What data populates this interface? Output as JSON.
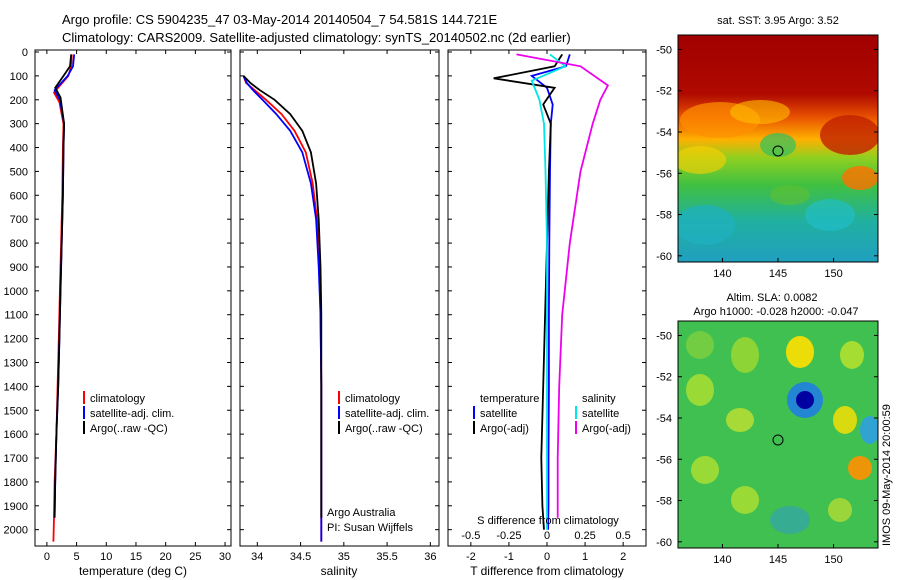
{
  "titles": {
    "line1": "Argo profile: CS 5904235_47 03-May-2014 20140504_7 54.581S 144.721E",
    "line2": "Climatology: CARS2009. Satellite-adjusted climatology: synTS_20140502.nc (2d earlier)"
  },
  "colors": {
    "climatology": "#ff0000",
    "satellite": "#0000ff",
    "argo": "#000000",
    "s_satellite": "#00e5e5",
    "s_argo": "#ee00ee"
  },
  "depth_ticks": [
    "0",
    "100",
    "200",
    "300",
    "400",
    "500",
    "600",
    "700",
    "800",
    "900",
    "1000",
    "1100",
    "1200",
    "1300",
    "1400",
    "1500",
    "1600",
    "1700",
    "1800",
    "1900",
    "2000"
  ],
  "panels": {
    "temperature": {
      "xlabel": "temperature (deg C)",
      "xticks": [
        "0",
        "5",
        "10",
        "15",
        "20",
        "25",
        "30"
      ],
      "xlim": [
        -2,
        31
      ],
      "legend": [
        "climatology",
        "satellite-adj. clim.",
        "Argo(..raw -QC)"
      ]
    },
    "salinity": {
      "xlabel": "salinity",
      "xticks": [
        "34",
        "34.5",
        "35",
        "35.5",
        "36"
      ],
      "xlim": [
        33.8,
        36.1
      ],
      "legend": [
        "climatology",
        "satellite-adj. clim.",
        "Argo(..raw -QC)"
      ],
      "note1": "Argo Australia",
      "note2": "PI: Susan Wijffels"
    },
    "difference": {
      "xlabel": "T difference from climatology",
      "top_label": "S difference from climatology",
      "t_ticks": [
        "-2",
        "-1",
        "0",
        "1",
        "2"
      ],
      "t_xlim": [
        -2.6,
        2.6
      ],
      "s_ticks": [
        "-0.5",
        "-0.25",
        "0",
        "0.25",
        "0.5"
      ],
      "legend_temperature": [
        "temperature",
        "satellite",
        "Argo(-adj)"
      ],
      "legend_salinity": [
        "salinity",
        "satellite",
        "Argo(-adj)"
      ]
    },
    "sst_map": {
      "title": "sat. SST: 3.95 Argo: 3.52",
      "yticks": [
        "-50",
        "-52",
        "-54",
        "-56",
        "-58",
        "-60"
      ],
      "xticks": [
        "140",
        "145",
        "150"
      ]
    },
    "sla_map": {
      "title1": "Altim. SLA: 0.0082",
      "title2": "Argo h1000: -0.028 h2000: -0.047",
      "yticks": [
        "-50",
        "-52",
        "-54",
        "-56",
        "-58",
        "-60"
      ],
      "xticks": [
        "140",
        "145",
        "150"
      ]
    }
  },
  "side_text": "IMOS 09-May-2014 20:00:59",
  "chart_data": [
    {
      "type": "line",
      "name_hint": "temperature profile",
      "xlabel": "temperature (deg C)",
      "ylabel": "",
      "xlim": [
        -2,
        31
      ],
      "ylim": [
        2060,
        0
      ],
      "series": [
        {
          "name": "climatology",
          "color": "#ff0000",
          "x": [
            4.2,
            4.1,
            3.6,
            1.2,
            2.1,
            2.8,
            2.7,
            2.6,
            2.4,
            2.2,
            2.0,
            1.8,
            1.6,
            1.3,
            1.2,
            1.1
          ],
          "y": [
            10,
            60,
            100,
            170,
            210,
            300,
            400,
            600,
            800,
            1000,
            1200,
            1400,
            1600,
            1800,
            1950,
            2050
          ]
        },
        {
          "name": "satellite-adj. clim.",
          "color": "#0000ff",
          "x": [
            4.6,
            4.4,
            3.5,
            1.3,
            2.2,
            2.9,
            2.8,
            2.7,
            2.5,
            2.3,
            2.1,
            1.9,
            1.6,
            1.4,
            1.3
          ],
          "y": [
            10,
            60,
            100,
            160,
            200,
            300,
            400,
            600,
            800,
            1000,
            1200,
            1400,
            1600,
            1800,
            1950
          ]
        },
        {
          "name": "Argo(..raw -QC)",
          "color": "#000000",
          "x": [
            4.1,
            3.9,
            2.8,
            1.4,
            2.3,
            2.9,
            2.8,
            2.7,
            2.5,
            2.3,
            2.1,
            1.9,
            1.6,
            1.4,
            1.3
          ],
          "y": [
            10,
            60,
            100,
            150,
            190,
            300,
            400,
            600,
            800,
            1000,
            1200,
            1400,
            1600,
            1800,
            1950
          ]
        }
      ]
    },
    {
      "type": "line",
      "name_hint": "salinity profile",
      "xlabel": "salinity",
      "ylabel": "",
      "xlim": [
        33.8,
        36.1
      ],
      "ylim": [
        2060,
        0
      ],
      "series": [
        {
          "name": "climatology",
          "color": "#ff0000",
          "x": [
            33.84,
            33.87,
            33.97,
            34.1,
            34.28,
            34.43,
            34.56,
            34.64,
            34.69,
            34.72,
            34.73,
            34.74,
            34.74,
            34.74,
            34.74
          ],
          "y": [
            100,
            130,
            160,
            200,
            260,
            330,
            420,
            550,
            700,
            900,
            1100,
            1400,
            1700,
            1900,
            2050
          ]
        },
        {
          "name": "satellite-adj. clim.",
          "color": "#0000ff",
          "x": [
            33.84,
            33.88,
            33.95,
            34.06,
            34.22,
            34.38,
            34.52,
            34.62,
            34.68,
            34.71,
            34.73,
            34.74,
            34.74,
            34.74,
            34.74
          ],
          "y": [
            100,
            130,
            160,
            200,
            260,
            330,
            420,
            550,
            700,
            900,
            1100,
            1400,
            1700,
            1900,
            2050
          ]
        },
        {
          "name": "Argo(..raw -QC)",
          "color": "#000000",
          "x": [
            33.84,
            33.92,
            34.03,
            34.2,
            34.38,
            34.52,
            34.62,
            34.68,
            34.71,
            34.73,
            34.74,
            34.74,
            34.74,
            34.74
          ],
          "y": [
            100,
            130,
            160,
            200,
            260,
            330,
            420,
            550,
            700,
            900,
            1100,
            1400,
            1700,
            1950
          ]
        }
      ]
    },
    {
      "type": "line",
      "name_hint": "difference from climatology",
      "xlabel": "T difference from climatology",
      "ylabel": "",
      "xlim": [
        -2.6,
        2.6
      ],
      "ylim": [
        2060,
        0
      ],
      "series": [
        {
          "name": "temperature satellite",
          "color": "#0000ff",
          "x": [
            0.6,
            0.5,
            -0.4,
            0.0,
            0.15,
            0.1,
            0.08,
            0.06,
            0.05,
            0.05,
            0.04,
            0.04,
            0.03
          ],
          "y": [
            10,
            60,
            100,
            150,
            220,
            300,
            500,
            800,
            1100,
            1400,
            1700,
            1900,
            2000
          ]
        },
        {
          "name": "temperature Argo(-adj)",
          "color": "#000000",
          "x": [
            0.4,
            0.2,
            -1.4,
            0.2,
            -0.1,
            0.1,
            0.05,
            0.0,
            -0.05,
            -0.1,
            -0.15,
            -0.12,
            -0.08
          ],
          "y": [
            10,
            60,
            110,
            150,
            220,
            300,
            500,
            800,
            1100,
            1400,
            1700,
            1900,
            2000
          ]
        },
        {
          "name": "salinity satellite",
          "color": "#00e5e5",
          "x": [
            0.02,
            0.12,
            -0.1,
            -0.05,
            -0.02,
            -0.01,
            0.0,
            0.0,
            0.0,
            0.0
          ],
          "y": [
            10,
            60,
            120,
            200,
            300,
            500,
            800,
            1200,
            1600,
            2000
          ]
        },
        {
          "name": "salinity Argo(-adj)",
          "color": "#ee00ee",
          "x": [
            -0.2,
            0.22,
            0.4,
            0.35,
            0.3,
            0.22,
            0.15,
            0.1,
            0.08,
            0.07,
            0.07
          ],
          "y": [
            10,
            60,
            140,
            200,
            300,
            500,
            800,
            1100,
            1400,
            1700,
            1950
          ]
        }
      ]
    },
    {
      "type": "heatmap",
      "title": "sat. SST: 3.95 Argo: 3.52",
      "x_range": [
        136,
        154
      ],
      "y_range": [
        -60.3,
        -49.3
      ],
      "marker": {
        "lon": 144.721,
        "lat": -54.581
      }
    },
    {
      "type": "heatmap",
      "title": "Altim. SLA: 0.0082",
      "x_range": [
        136,
        154
      ],
      "y_range": [
        -60.3,
        -49.3
      ],
      "marker": {
        "lon": 144.721,
        "lat": -54.581
      }
    }
  ]
}
